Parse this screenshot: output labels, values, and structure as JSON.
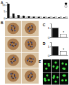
{
  "figure": {
    "panel_labels": [
      "A",
      "B",
      "C",
      "D",
      "E"
    ]
  },
  "chart_data": [
    {
      "type": "bar",
      "categories": [
        null,
        null,
        null,
        null,
        null,
        null,
        null,
        null,
        null,
        null,
        null,
        null
      ],
      "series": [
        {
          "color": "#111111",
          "values": [
            10.5,
            3.2,
            2.0,
            1.6,
            1.2,
            1.0,
            0.8,
            0.6,
            0.5,
            0.4,
            0.3,
            0.3
          ]
        },
        {
          "color": "#ffffff",
          "values": [
            1,
            1,
            1,
            1,
            1,
            1,
            1,
            1,
            1,
            1,
            1,
            1
          ]
        }
      ],
      "ylim": [
        0,
        12
      ],
      "yticks": [
        0,
        5,
        10
      ],
      "legend": "top-right",
      "tick_labels": "y"
    },
    {
      "type": "bar",
      "categories": [
        null,
        null
      ],
      "values": [
        1.0,
        0.35
      ],
      "colors": [
        "#111111",
        "#ffffff"
      ],
      "ylim": [
        0,
        1.5
      ],
      "yticks": [
        0,
        1
      ],
      "annotation": "*",
      "tick_labels": "y"
    },
    {
      "type": "bar",
      "categories": [
        null,
        null
      ],
      "values": [
        1.0,
        0.45
      ],
      "colors": [
        "#111111",
        "#ffffff"
      ],
      "ylim": [
        0,
        1.5
      ],
      "yticks": [
        0,
        1
      ],
      "annotation": "*",
      "tick_labels": "y"
    }
  ]
}
